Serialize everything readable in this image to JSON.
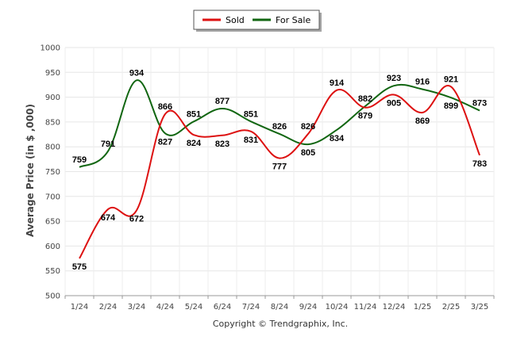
{
  "chart_data": {
    "type": "line",
    "ylabel": "Average Price (in $ ,000)",
    "ylim": [
      500,
      1000
    ],
    "yticks": [
      500,
      550,
      600,
      650,
      700,
      750,
      800,
      850,
      900,
      950,
      1000
    ],
    "categories": [
      "1/24",
      "2/24",
      "3/24",
      "4/24",
      "5/24",
      "6/24",
      "7/24",
      "8/24",
      "9/24",
      "10/24",
      "11/24",
      "12/24",
      "1/25",
      "2/25",
      "3/25"
    ],
    "legend_position": "top-center",
    "grid": true,
    "series": [
      {
        "name": "Sold",
        "color": "#dd1111",
        "values": [
          575,
          674,
          672,
          866,
          824,
          823,
          831,
          777,
          826,
          914,
          879,
          905,
          869,
          921,
          783
        ],
        "labels": [
          "575",
          "674",
          "672",
          "866",
          "824",
          "823",
          "831",
          "777",
          "826",
          "914",
          "879",
          "905",
          "869",
          "921",
          "783"
        ]
      },
      {
        "name": "For Sale",
        "color": "#116611",
        "values": [
          759,
          791,
          934,
          827,
          851,
          877,
          851,
          826,
          805,
          834,
          882,
          923,
          916,
          899,
          873
        ],
        "labels": [
          "759",
          "791",
          "934",
          "827",
          "851",
          "877",
          "851",
          "826",
          "805",
          "834",
          "882",
          "923",
          "916",
          "899",
          "873"
        ]
      }
    ]
  },
  "footer": {
    "copyright": "Copyright © Trendgraphix, Inc."
  }
}
